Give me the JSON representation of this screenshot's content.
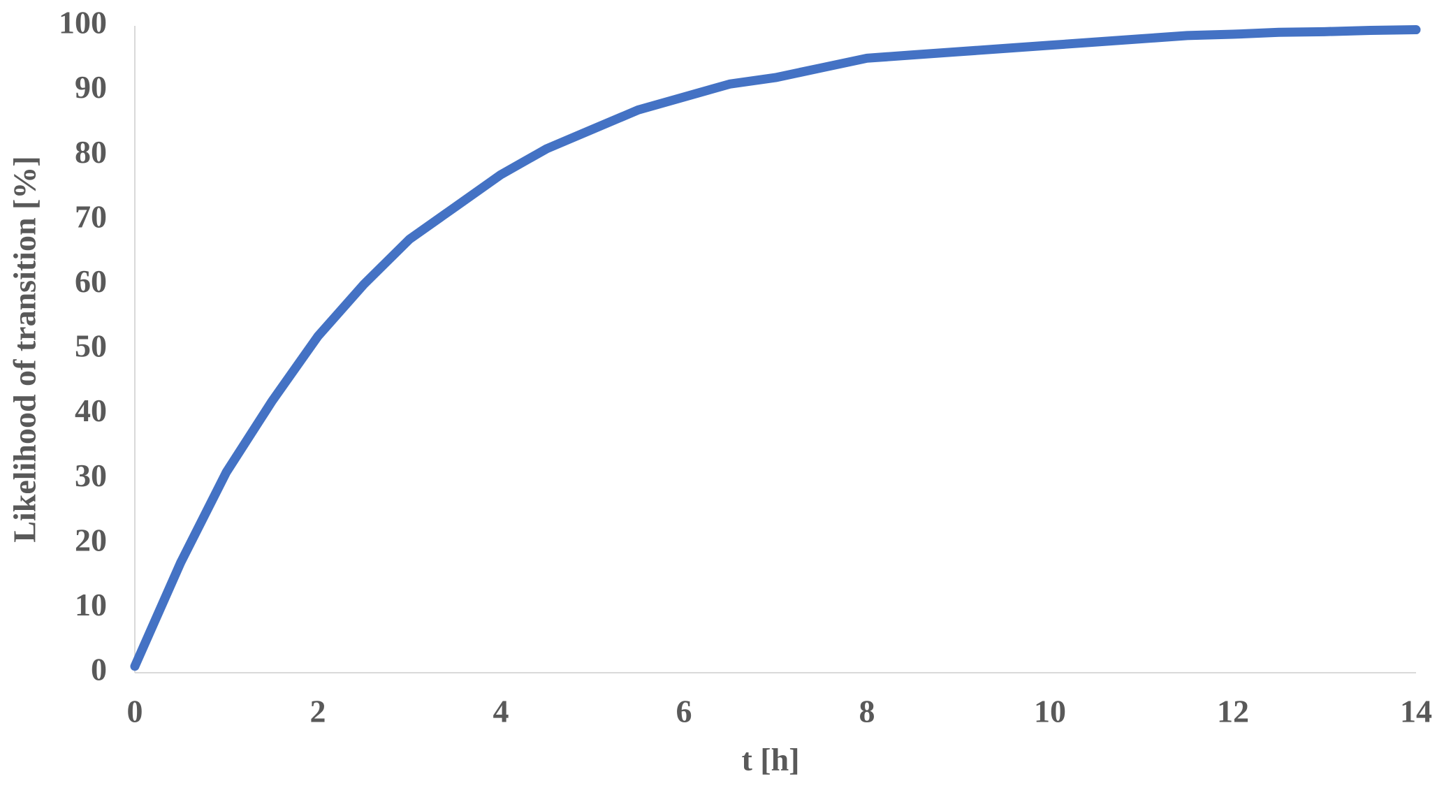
{
  "chart_data": {
    "type": "line",
    "x_label": "t [h]",
    "y_label": "Likelihood of transition [%]",
    "x": [
      0,
      0.5,
      1,
      1.5,
      2,
      2.5,
      3,
      3.5,
      4,
      4.5,
      5,
      5.5,
      6,
      6.5,
      7,
      7.5,
      8,
      8.5,
      9,
      9.5,
      10,
      10.5,
      11,
      11.5,
      12,
      12.5,
      13,
      13.5,
      14
    ],
    "series": [
      {
        "color": "#4472c4",
        "values": [
          1,
          17,
          31,
          42,
          52,
          60,
          67,
          72,
          77,
          81,
          84,
          87,
          89,
          91,
          92,
          93.5,
          95,
          95.5,
          96,
          96.5,
          97,
          97.5,
          98,
          98.5,
          98.7,
          99,
          99.1,
          99.3,
          99.4
        ]
      }
    ],
    "xlim": [
      0,
      14
    ],
    "xticks": [
      0,
      2,
      4,
      6,
      8,
      10,
      12,
      14
    ],
    "ylim": [
      0,
      100
    ],
    "yticks": [
      0,
      10,
      20,
      30,
      40,
      50,
      60,
      70,
      80,
      90,
      100
    ],
    "grid": false
  }
}
